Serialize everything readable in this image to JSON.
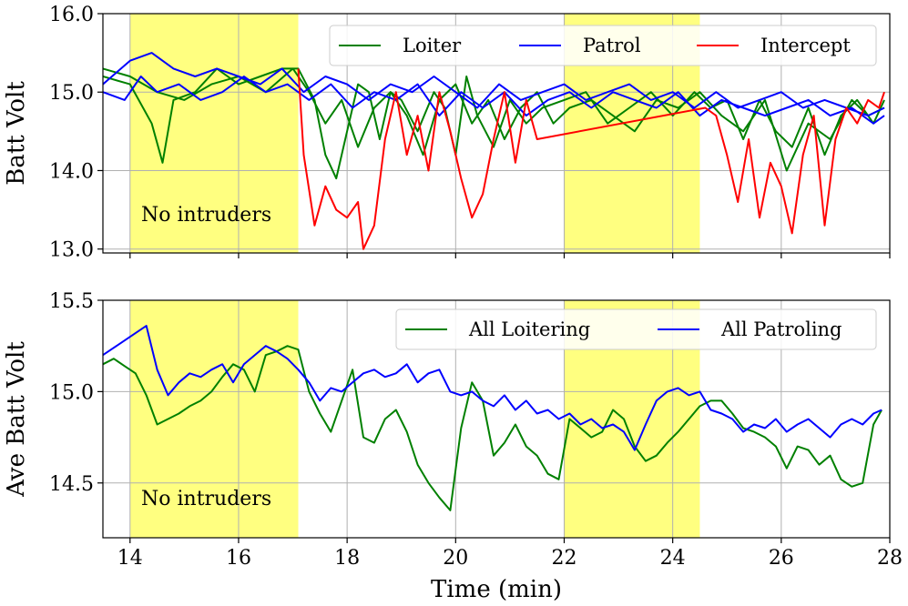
{
  "chart_data": [
    {
      "type": "line",
      "title": "",
      "xlabel": "",
      "ylabel": "Batt Volt",
      "xlim": [
        13.5,
        28
      ],
      "ylim": [
        12.95,
        16.0
      ],
      "xticks": [
        14,
        16,
        18,
        20,
        22,
        24,
        26,
        28
      ],
      "yticks": [
        13.0,
        14.0,
        15.0,
        16.0
      ],
      "ytick_labels": [
        "13.0",
        "14.0",
        "15.0",
        "16.0"
      ],
      "shaded_regions": [
        [
          14.0,
          17.1
        ],
        [
          22.0,
          24.5
        ]
      ],
      "shade_color": "#ffff80",
      "annotation": "No intruders",
      "legend": [
        {
          "name": "Loiter",
          "color": "#008000"
        },
        {
          "name": "Patrol",
          "color": "#0000ff"
        },
        {
          "name": "Intercept",
          "color": "#ff0000"
        }
      ],
      "series": [
        {
          "name": "Loiter",
          "color": "#008000",
          "x": [
            13.5,
            14.0,
            14.4,
            14.6,
            14.8,
            15.2,
            15.6,
            16.0,
            16.4,
            16.8,
            17.1,
            17.4,
            17.6,
            17.8,
            18.0,
            18.2,
            18.4,
            18.6,
            18.8,
            19.0,
            19.3,
            19.6,
            19.8,
            20.0,
            20.2,
            20.4,
            20.7,
            21.0,
            21.3,
            21.6,
            22.0,
            22.4,
            22.8,
            23.2,
            23.6,
            24.0,
            24.4,
            24.7,
            25.0,
            25.3,
            25.6,
            25.9,
            26.2,
            26.5,
            26.8,
            27.1,
            27.4,
            27.7,
            27.9
          ],
          "values": [
            15.2,
            15.1,
            14.6,
            14.1,
            14.9,
            15.0,
            15.3,
            15.1,
            15.2,
            15.3,
            15.3,
            14.9,
            14.2,
            13.9,
            14.5,
            15.1,
            15.0,
            14.4,
            15.0,
            14.9,
            14.5,
            15.0,
            14.8,
            14.2,
            15.2,
            14.7,
            14.3,
            14.9,
            14.6,
            14.8,
            14.9,
            15.0,
            14.6,
            14.8,
            15.0,
            14.7,
            15.0,
            14.8,
            14.9,
            14.4,
            14.9,
            14.5,
            14.3,
            14.8,
            14.2,
            14.7,
            14.9,
            14.6,
            14.9
          ]
        },
        {
          "name": "Loiter",
          "color": "#008000",
          "x": [
            13.5,
            14.0,
            14.5,
            15.0,
            15.5,
            16.0,
            16.5,
            17.0,
            17.3,
            17.6,
            17.9,
            18.2,
            18.5,
            18.8,
            19.1,
            19.4,
            19.7,
            20.0,
            20.3,
            20.6,
            20.9,
            21.2,
            21.5,
            21.8,
            22.1,
            22.5,
            22.9,
            23.3,
            23.7,
            24.1,
            24.5,
            24.9,
            25.3,
            25.7,
            26.1,
            26.5,
            26.9,
            27.3,
            27.6,
            27.9
          ],
          "values": [
            15.3,
            15.2,
            15.0,
            14.9,
            15.1,
            15.2,
            15.0,
            15.3,
            15.0,
            14.6,
            14.9,
            14.3,
            14.8,
            15.0,
            14.7,
            14.2,
            14.9,
            15.1,
            14.6,
            14.9,
            14.4,
            14.8,
            15.0,
            14.6,
            14.8,
            14.9,
            14.7,
            14.5,
            14.9,
            14.8,
            15.0,
            14.7,
            14.5,
            14.9,
            14.0,
            14.6,
            14.4,
            14.9,
            14.7,
            14.8
          ]
        },
        {
          "name": "Patrol",
          "color": "#0000ff",
          "x": [
            13.5,
            14.0,
            14.4,
            14.8,
            15.2,
            15.6,
            16.0,
            16.4,
            16.8,
            17.2,
            17.6,
            18.0,
            18.4,
            18.8,
            19.2,
            19.6,
            20.0,
            20.4,
            20.8,
            21.2,
            21.6,
            22.0,
            22.4,
            22.8,
            23.2,
            23.6,
            24.0,
            24.4,
            24.8,
            25.2,
            25.6,
            26.0,
            26.4,
            26.8,
            27.2,
            27.6,
            27.9
          ],
          "values": [
            15.1,
            15.4,
            15.5,
            15.3,
            15.2,
            15.3,
            15.2,
            15.1,
            15.3,
            15.0,
            15.2,
            15.1,
            14.9,
            15.1,
            15.0,
            15.2,
            15.0,
            14.8,
            15.1,
            14.9,
            15.0,
            15.1,
            14.9,
            15.0,
            15.1,
            14.9,
            15.0,
            14.8,
            15.0,
            14.8,
            14.9,
            15.0,
            14.8,
            14.9,
            14.8,
            14.7,
            14.8
          ]
        },
        {
          "name": "Patrol",
          "color": "#0000ff",
          "x": [
            13.5,
            13.9,
            14.2,
            14.5,
            14.9,
            15.3,
            15.7,
            16.1,
            16.5,
            16.9,
            17.3,
            17.7,
            18.1,
            18.5,
            18.9,
            19.3,
            19.7,
            20.1,
            20.5,
            20.9,
            21.3,
            21.7,
            22.1,
            22.5,
            22.9,
            23.3,
            23.7,
            24.1,
            24.5,
            24.9,
            25.3,
            25.7,
            26.1,
            26.5,
            26.9,
            27.3,
            27.7,
            27.9
          ],
          "values": [
            15.0,
            14.9,
            15.2,
            15.0,
            15.1,
            14.9,
            15.0,
            15.2,
            15.0,
            15.1,
            14.9,
            15.1,
            14.8,
            15.0,
            14.9,
            15.1,
            14.7,
            15.0,
            14.8,
            15.0,
            14.7,
            14.9,
            15.0,
            14.8,
            15.0,
            14.9,
            14.8,
            15.0,
            14.7,
            14.9,
            14.8,
            14.7,
            14.8,
            14.9,
            14.7,
            14.8,
            14.6,
            14.7
          ]
        },
        {
          "name": "Intercept",
          "color": "#ff0000",
          "x": [
            17.1,
            17.2,
            17.4,
            17.6,
            17.8,
            18.0,
            18.2,
            18.3,
            18.5,
            18.7,
            18.9,
            19.1,
            19.3,
            19.5,
            19.7,
            19.9,
            20.1,
            20.3,
            20.5,
            20.7,
            20.9,
            21.1,
            21.3,
            21.5,
            24.6,
            24.8,
            25.0,
            25.2,
            25.4,
            25.6,
            25.8,
            26.0,
            26.2,
            26.4,
            26.6,
            26.8,
            27.0,
            27.2,
            27.4,
            27.6,
            27.8,
            27.9
          ],
          "values": [
            15.3,
            14.2,
            13.3,
            13.8,
            13.5,
            13.4,
            13.6,
            13.0,
            13.3,
            14.4,
            15.0,
            14.2,
            14.7,
            14.0,
            15.0,
            14.5,
            13.9,
            13.4,
            13.7,
            14.4,
            15.0,
            14.1,
            14.9,
            14.4,
            14.8,
            14.7,
            14.2,
            13.6,
            14.4,
            13.4,
            14.1,
            13.8,
            13.2,
            14.2,
            14.7,
            13.3,
            14.4,
            14.8,
            14.6,
            14.9,
            14.8,
            15.0
          ]
        }
      ]
    },
    {
      "type": "line",
      "title": "",
      "xlabel": "Time (min)",
      "ylabel": "Ave Batt Volt",
      "xlim": [
        13.5,
        28
      ],
      "ylim": [
        14.2,
        15.5
      ],
      "xticks": [
        14,
        16,
        18,
        20,
        22,
        24,
        26,
        28
      ],
      "xtick_labels": [
        "14",
        "16",
        "18",
        "20",
        "22",
        "24",
        "26",
        "28"
      ],
      "yticks": [
        14.5,
        15.0,
        15.5
      ],
      "ytick_labels": [
        "14.5",
        "15.0",
        "15.5"
      ],
      "shaded_regions": [
        [
          14.0,
          17.1
        ],
        [
          22.0,
          24.5
        ]
      ],
      "shade_color": "#ffff80",
      "annotation": "No intruders",
      "legend": [
        {
          "name": "All Loitering",
          "color": "#008000"
        },
        {
          "name": "All Patroling",
          "color": "#0000ff"
        }
      ],
      "series": [
        {
          "name": "All Loitering",
          "color": "#008000",
          "x": [
            13.5,
            13.7,
            13.9,
            14.1,
            14.3,
            14.5,
            14.7,
            14.9,
            15.1,
            15.3,
            15.5,
            15.7,
            15.9,
            16.1,
            16.3,
            16.5,
            16.7,
            16.9,
            17.1,
            17.3,
            17.5,
            17.7,
            17.9,
            18.1,
            18.3,
            18.5,
            18.7,
            18.9,
            19.1,
            19.3,
            19.5,
            19.7,
            19.9,
            20.1,
            20.3,
            20.5,
            20.7,
            20.9,
            21.1,
            21.3,
            21.5,
            21.7,
            21.9,
            22.1,
            22.3,
            22.5,
            22.7,
            22.9,
            23.1,
            23.3,
            23.5,
            23.7,
            23.9,
            24.1,
            24.3,
            24.5,
            24.7,
            24.9,
            25.1,
            25.3,
            25.5,
            25.7,
            25.9,
            26.1,
            26.3,
            26.5,
            26.7,
            26.9,
            27.1,
            27.3,
            27.5,
            27.7,
            27.85
          ],
          "values": [
            15.15,
            15.18,
            15.14,
            15.1,
            14.98,
            14.82,
            14.85,
            14.88,
            14.92,
            14.95,
            15.0,
            15.08,
            15.15,
            15.12,
            15.0,
            15.2,
            15.22,
            15.25,
            15.23,
            15.0,
            14.88,
            14.78,
            14.95,
            15.12,
            14.75,
            14.72,
            14.85,
            14.9,
            14.78,
            14.6,
            14.5,
            14.42,
            14.35,
            14.8,
            15.05,
            14.95,
            14.65,
            14.72,
            14.82,
            14.7,
            14.65,
            14.55,
            14.52,
            14.85,
            14.8,
            14.75,
            14.78,
            14.9,
            14.85,
            14.7,
            14.62,
            14.65,
            14.72,
            14.78,
            14.85,
            14.92,
            14.95,
            14.95,
            14.88,
            14.8,
            14.78,
            14.75,
            14.7,
            14.58,
            14.7,
            14.68,
            14.6,
            14.65,
            14.52,
            14.48,
            14.5,
            14.82,
            14.9
          ]
        },
        {
          "name": "All Patroling",
          "color": "#0000ff",
          "x": [
            13.5,
            13.7,
            13.9,
            14.1,
            14.3,
            14.5,
            14.7,
            14.9,
            15.1,
            15.3,
            15.5,
            15.7,
            15.9,
            16.1,
            16.3,
            16.5,
            16.7,
            16.9,
            17.1,
            17.3,
            17.5,
            17.7,
            17.9,
            18.1,
            18.3,
            18.5,
            18.7,
            18.9,
            19.1,
            19.3,
            19.5,
            19.7,
            19.9,
            20.1,
            20.3,
            20.5,
            20.7,
            20.9,
            21.1,
            21.3,
            21.5,
            21.7,
            21.9,
            22.1,
            22.3,
            22.5,
            22.7,
            22.9,
            23.1,
            23.3,
            23.5,
            23.7,
            23.9,
            24.1,
            24.3,
            24.5,
            24.7,
            24.9,
            25.1,
            25.3,
            25.5,
            25.7,
            25.9,
            26.1,
            26.3,
            26.5,
            26.7,
            26.9,
            27.1,
            27.3,
            27.5,
            27.7,
            27.85
          ],
          "values": [
            15.2,
            15.24,
            15.28,
            15.32,
            15.36,
            15.12,
            14.98,
            15.05,
            15.1,
            15.08,
            15.12,
            15.15,
            15.05,
            15.15,
            15.2,
            15.25,
            15.22,
            15.18,
            15.12,
            15.05,
            14.95,
            15.02,
            15.0,
            15.05,
            15.1,
            15.12,
            15.08,
            15.1,
            15.15,
            15.05,
            15.1,
            15.12,
            15.0,
            14.98,
            15.0,
            14.95,
            14.92,
            14.98,
            14.9,
            14.95,
            14.88,
            14.9,
            14.85,
            14.88,
            14.82,
            14.85,
            14.8,
            14.82,
            14.78,
            14.68,
            14.82,
            14.95,
            15.0,
            15.02,
            14.98,
            15.0,
            14.9,
            14.88,
            14.85,
            14.78,
            14.82,
            14.8,
            14.85,
            14.78,
            14.82,
            14.85,
            14.8,
            14.75,
            14.82,
            14.85,
            14.82,
            14.88,
            14.9
          ]
        }
      ]
    }
  ]
}
